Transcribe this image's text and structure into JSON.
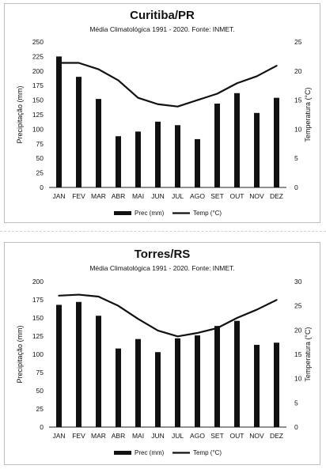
{
  "chart_data": [
    {
      "type": "bar",
      "title": "Curitiba/PR",
      "subtitle": "Média Climatológica 1991 - 2020. Fonte: INMET.",
      "categories": [
        "JAN",
        "FEV",
        "MAR",
        "ABR",
        "MAI",
        "JUN",
        "JUL",
        "AGO",
        "SET",
        "OUT",
        "NOV",
        "DEZ"
      ],
      "series": [
        {
          "name": "Prec (mm)",
          "type": "bar",
          "axis": "left",
          "color": "#111111",
          "values": [
            225,
            190,
            152,
            88,
            96,
            113,
            107,
            83,
            144,
            162,
            128,
            154
          ]
        },
        {
          "name": "Temp (°C)",
          "type": "line",
          "axis": "right",
          "color": "#111111",
          "values": [
            21.4,
            21.4,
            20.3,
            18.4,
            15.4,
            14.3,
            13.9,
            15.0,
            16.1,
            17.9,
            19.1,
            20.9
          ]
        }
      ],
      "ylabel": "Precipitação (mm)",
      "y2label": "Temperatura (°C)",
      "ylim": [
        0,
        250
      ],
      "yticks": [
        0,
        25,
        50,
        75,
        100,
        125,
        150,
        175,
        200,
        225,
        250
      ],
      "y2lim": [
        0,
        25
      ],
      "y2ticks": [
        0,
        5,
        10,
        15,
        20,
        25
      ],
      "grid": false,
      "legend": "bottom"
    },
    {
      "type": "bar",
      "title": "Torres/RS",
      "subtitle": "Média Climatológica 1991 - 2020. Fonte: INMET.",
      "categories": [
        "JAN",
        "FEV",
        "MAR",
        "ABR",
        "MAI",
        "JUN",
        "JUL",
        "AGO",
        "SET",
        "OUT",
        "NOV",
        "DEZ"
      ],
      "series": [
        {
          "name": "Prec (mm)",
          "type": "bar",
          "axis": "left",
          "color": "#111111",
          "values": [
            168,
            172,
            153,
            108,
            121,
            103,
            122,
            126,
            139,
            146,
            113,
            116
          ]
        },
        {
          "name": "Temp (°C)",
          "type": "line",
          "axis": "right",
          "color": "#111111",
          "values": [
            27.1,
            27.3,
            26.9,
            25.0,
            22.3,
            19.9,
            18.7,
            19.4,
            20.4,
            22.5,
            24.2,
            26.2
          ]
        }
      ],
      "ylabel": "Precipitação (mm)",
      "y2label": "Temperatura (°C)",
      "ylim": [
        0,
        200
      ],
      "yticks": [
        0,
        25,
        50,
        75,
        100,
        125,
        150,
        175,
        200
      ],
      "y2lim": [
        0,
        30
      ],
      "y2ticks": [
        0,
        5,
        10,
        15,
        20,
        25,
        30
      ],
      "grid": false,
      "legend": "bottom"
    }
  ]
}
